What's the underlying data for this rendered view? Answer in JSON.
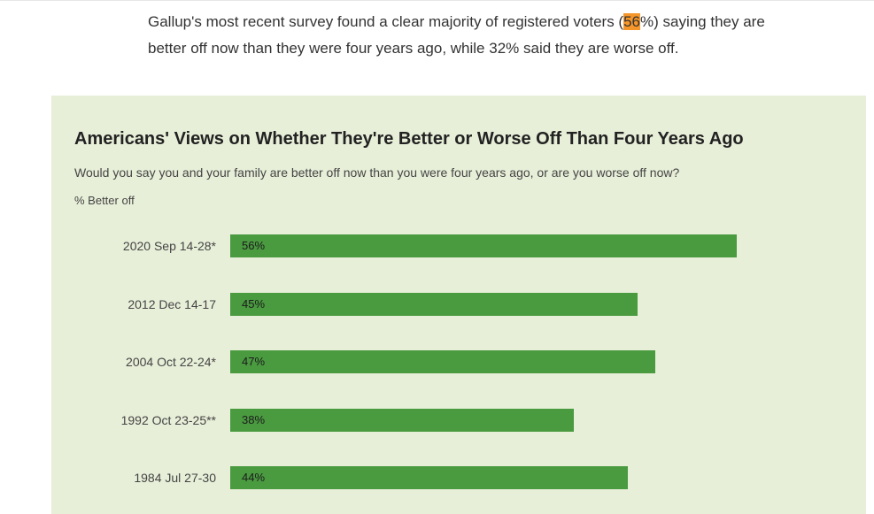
{
  "intro": {
    "before": "Gallup's most recent survey found a clear majority of registered voters (",
    "highlight": "56",
    "after": "%) saying they are better off now than they were four years ago, while 32% said they are worse off."
  },
  "colors": {
    "panel_background": "#e7efd8",
    "bar": "#4a9a40",
    "highlight": "#f5962b"
  },
  "chart_data": {
    "type": "bar",
    "orientation": "horizontal",
    "title": "Americans' Views on Whether They're Better or Worse Off Than Four Years Ago",
    "subtitle": "Would you say you and your family are better off now than you were four years ago, or are you worse off now?",
    "unit_label": "% Better off",
    "categories": [
      "2020 Sep 14-28*",
      "2012 Dec 14-17",
      "2004 Oct 22-24*",
      "1992 Oct 23-25**",
      "1984 Jul 27-30"
    ],
    "values": [
      56,
      45,
      47,
      38,
      44
    ],
    "value_labels": [
      "56%",
      "45%",
      "47%",
      "38%",
      "44%"
    ],
    "xlim": [
      0,
      56
    ],
    "grid": false,
    "legend": "none"
  }
}
